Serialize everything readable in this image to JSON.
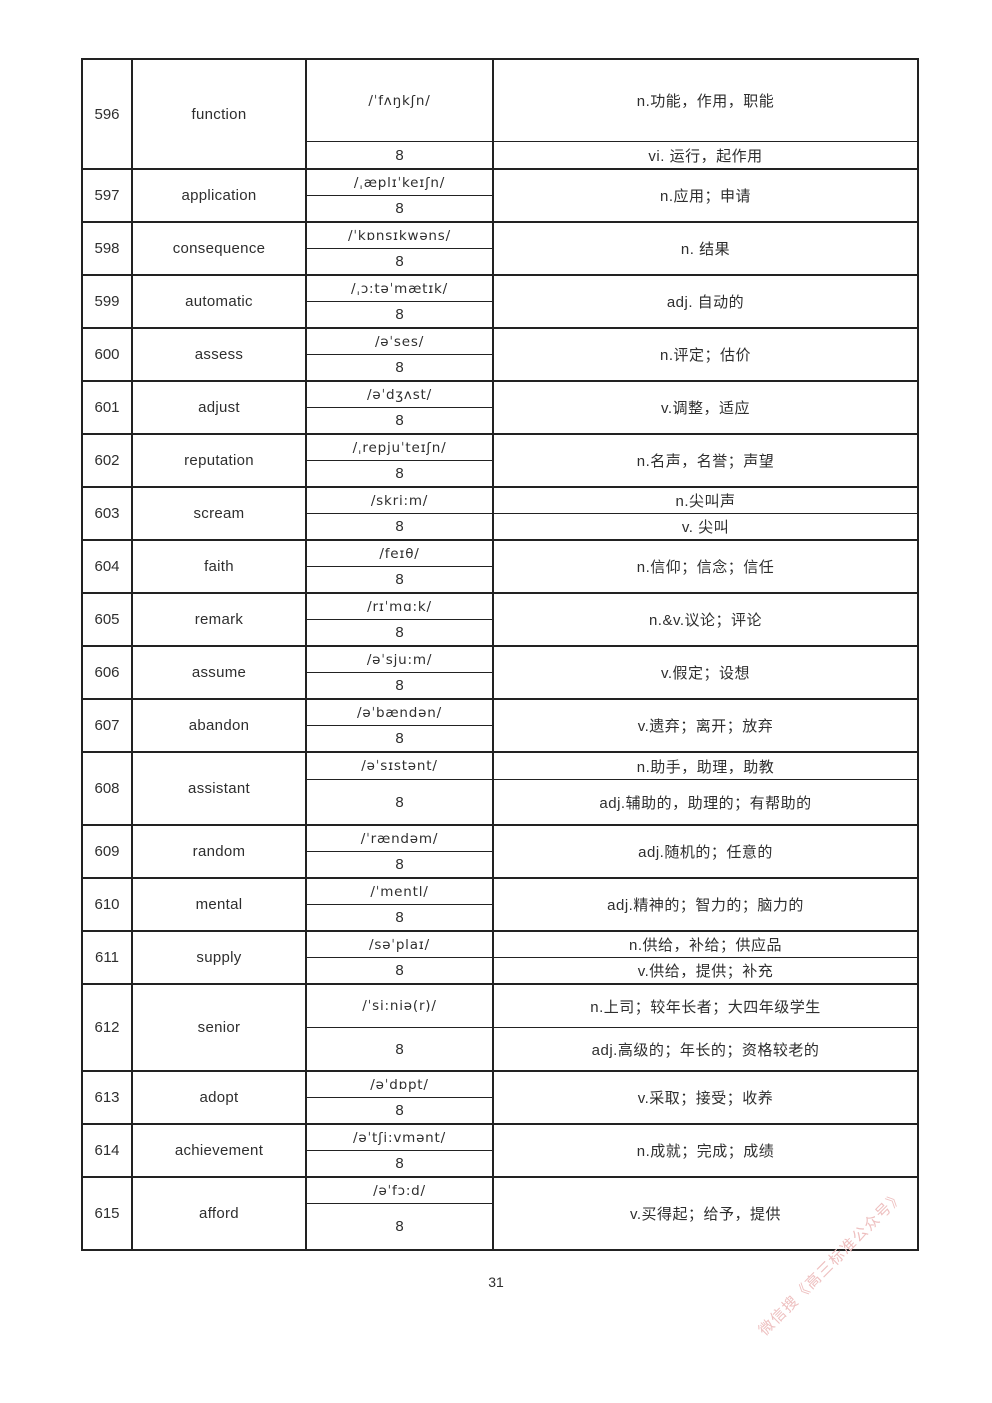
{
  "page": {
    "number": "31"
  },
  "watermark": {
    "text": "微信搜《高三标准公众号》",
    "color": "#eec0c0"
  },
  "table": {
    "rows": [
      {
        "id": "596",
        "word": "function",
        "ipa": "/ˈfʌŋkʃn/",
        "count": "8",
        "defs": [
          "n.功能，作用，职能",
          "vi. 运行，起作用"
        ]
      },
      {
        "id": "597",
        "word": "application",
        "ipa": "/ˌæplɪˈkeɪʃn/",
        "count": "8",
        "defs": [
          "n.应用；申请"
        ]
      },
      {
        "id": "598",
        "word": "consequence",
        "ipa": "/ˈkɒnsɪkwəns/",
        "count": "8",
        "defs": [
          "n. 结果"
        ]
      },
      {
        "id": "599",
        "word": "automatic",
        "ipa": "/ˌɔ:təˈmætɪk/",
        "count": "8",
        "defs": [
          "adj. 自动的"
        ]
      },
      {
        "id": "600",
        "word": "assess",
        "ipa": "/əˈses/",
        "count": "8",
        "defs": [
          "n.评定；估价"
        ]
      },
      {
        "id": "601",
        "word": "adjust",
        "ipa": "/əˈdʒʌst/",
        "count": "8",
        "defs": [
          "v.调整，适应"
        ]
      },
      {
        "id": "602",
        "word": "reputation",
        "ipa": "/ˌrepjuˈteɪʃn/",
        "count": "8",
        "defs": [
          "n.名声，名誉；声望"
        ]
      },
      {
        "id": "603",
        "word": "scream",
        "ipa": "/skri:m/",
        "count": "8",
        "defs": [
          "n.尖叫声",
          "v. 尖叫"
        ]
      },
      {
        "id": "604",
        "word": "faith",
        "ipa": "/feɪθ/",
        "count": "8",
        "defs": [
          "n.信仰；信念；信任"
        ]
      },
      {
        "id": "605",
        "word": "remark",
        "ipa": "/rɪˈmɑ:k/",
        "count": "8",
        "defs": [
          "n.&v.议论；评论"
        ]
      },
      {
        "id": "606",
        "word": "assume",
        "ipa": "/əˈsju:m/",
        "count": "8",
        "defs": [
          "v.假定；设想"
        ]
      },
      {
        "id": "607",
        "word": "abandon",
        "ipa": "/əˈbændən/",
        "count": "8",
        "defs": [
          "v.遗弃；离开；放弃"
        ]
      },
      {
        "id": "608",
        "word": "assistant",
        "ipa": "/əˈsɪstənt/",
        "count": "8",
        "defs": [
          "n.助手，助理，助教",
          "adj.辅助的，助理的；有帮助的"
        ]
      },
      {
        "id": "609",
        "word": "random",
        "ipa": "/ˈrændəm/",
        "count": "8",
        "defs": [
          "adj.随机的；任意的"
        ]
      },
      {
        "id": "610",
        "word": "mental",
        "ipa": "/ˈmentl/",
        "count": "8",
        "defs": [
          "adj.精神的；智力的；脑力的"
        ]
      },
      {
        "id": "611",
        "word": "supply",
        "ipa": "/səˈplaɪ/",
        "count": "8",
        "defs": [
          "n.供给，补给；供应品",
          "v.供给，提供；补充"
        ]
      },
      {
        "id": "612",
        "word": "senior",
        "ipa": "/ˈsi:niə(r)/",
        "count": "8",
        "defs": [
          "n.上司；较年长者；大四年级学生",
          "adj.高级的；年长的；资格较老的"
        ]
      },
      {
        "id": "613",
        "word": "adopt",
        "ipa": "/əˈdɒpt/",
        "count": "8",
        "defs": [
          "v.采取；接受；收养"
        ]
      },
      {
        "id": "614",
        "word": "achievement",
        "ipa": "/əˈtʃi:vmənt/",
        "count": "8",
        "defs": [
          "n.成就；完成；成绩"
        ]
      },
      {
        "id": "615",
        "word": "afford",
        "ipa": "/əˈfɔ:d/",
        "count": "8",
        "defs": [
          "v.买得起；给予，提供"
        ]
      }
    ]
  }
}
